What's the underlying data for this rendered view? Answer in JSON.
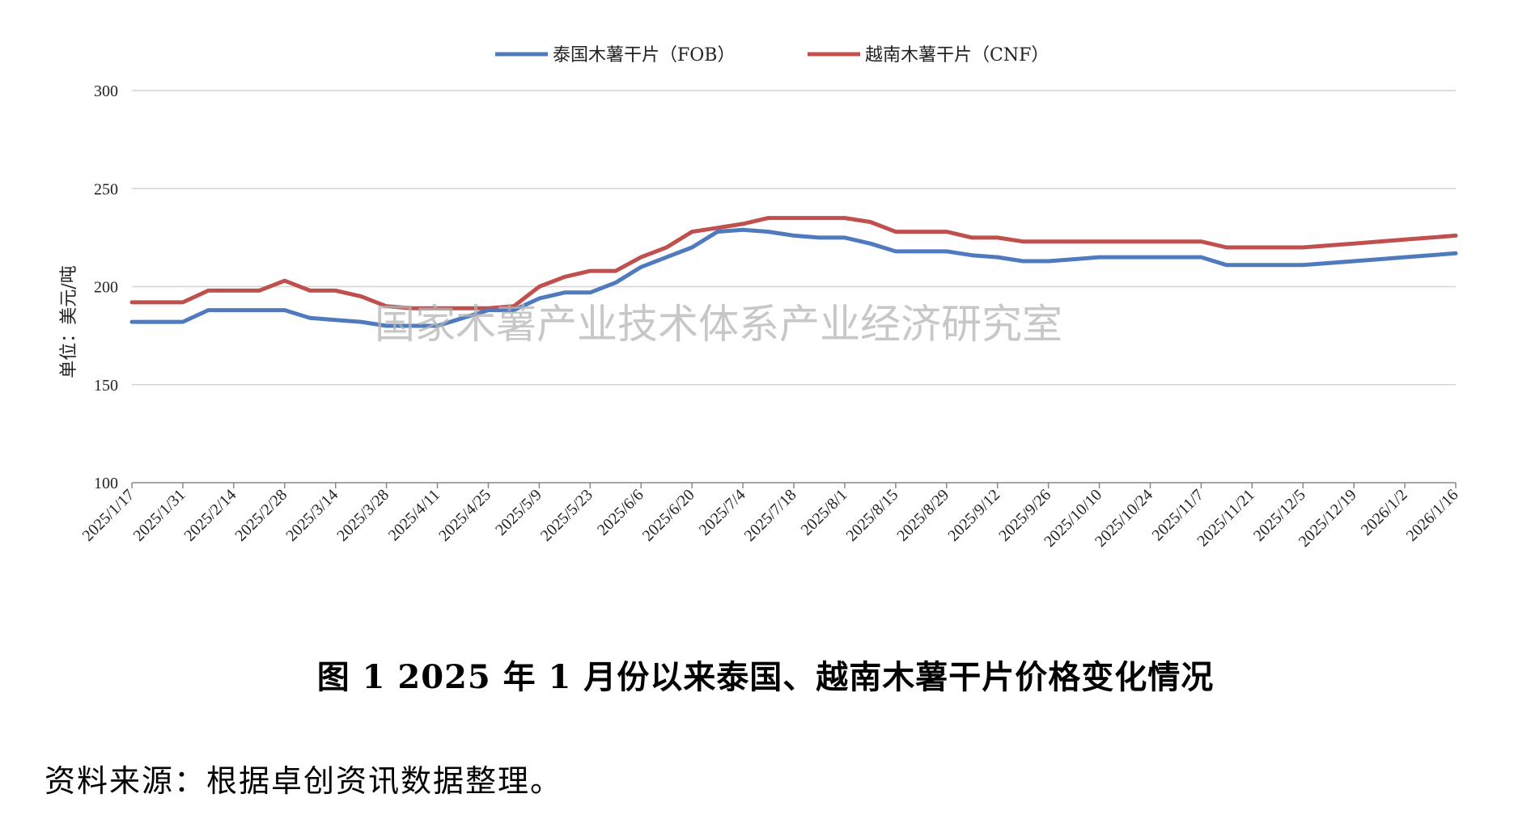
{
  "chart_data": {
    "type": "line",
    "title": "",
    "xlabel": "",
    "ylabel": "单位：美元/吨",
    "ylim": [
      100,
      300
    ],
    "yticks": [
      100,
      150,
      200,
      250,
      300
    ],
    "grid": true,
    "legend_position": "top",
    "x_tick_labels": [
      "2025/1/17",
      "2025/1/31",
      "2025/2/14",
      "2025/2/28",
      "2025/3/14",
      "2025/3/28",
      "2025/4/11",
      "2025/4/25",
      "2025/5/9",
      "2025/5/23",
      "2025/6/6",
      "2025/6/20",
      "2025/7/4",
      "2025/7/18",
      "2025/8/1",
      "2025/8/15",
      "2025/8/29",
      "2025/9/12",
      "2025/9/26",
      "2025/10/10",
      "2025/10/24",
      "2025/11/7",
      "2025/11/21",
      "2025/12/5",
      "2025/12/19",
      "2026/1/2",
      "2026/1/16"
    ],
    "x": [
      "2025/1/17",
      "2025/1/24",
      "2025/1/31",
      "2025/2/7",
      "2025/2/14",
      "2025/2/21",
      "2025/2/28",
      "2025/3/7",
      "2025/3/14",
      "2025/3/21",
      "2025/3/28",
      "2025/4/4",
      "2025/4/11",
      "2025/4/18",
      "2025/4/25",
      "2025/5/2",
      "2025/5/9",
      "2025/5/16",
      "2025/5/23",
      "2025/5/30",
      "2025/6/6",
      "2025/6/13",
      "2025/6/20",
      "2025/6/27",
      "2025/7/4",
      "2025/7/11",
      "2025/7/18",
      "2025/7/25",
      "2025/8/1",
      "2025/8/8",
      "2025/8/15",
      "2025/8/22",
      "2025/8/29",
      "2025/9/5",
      "2025/9/12",
      "2025/9/19",
      "2025/9/26",
      "2025/10/3",
      "2025/10/10",
      "2025/10/17",
      "2025/10/24",
      "2025/10/31",
      "2025/11/7",
      "2025/11/14",
      "2025/11/21",
      "2025/11/28",
      "2025/12/5",
      "2025/12/12",
      "2025/12/19",
      "2025/12/26",
      "2026/1/2",
      "2026/1/9",
      "2026/1/16"
    ],
    "series": [
      {
        "name": "泰国木薯干片（FOB）",
        "color": "#4f7bbe",
        "values": [
          182,
          182,
          182,
          188,
          188,
          188,
          188,
          184,
          183,
          182,
          180,
          180,
          180,
          184,
          188,
          188,
          194,
          197,
          197,
          202,
          210,
          215,
          220,
          228,
          229,
          228,
          226,
          225,
          225,
          222,
          218,
          218,
          218,
          216,
          215,
          213,
          213,
          214,
          215,
          215,
          215,
          215,
          215,
          211,
          211,
          211,
          211,
          212,
          213,
          214,
          215,
          216,
          217
        ]
      },
      {
        "name": "越南木薯干片（CNF）",
        "color": "#c0504d",
        "values": [
          192,
          192,
          192,
          198,
          198,
          198,
          203,
          198,
          198,
          195,
          190,
          189,
          189,
          189,
          189,
          190,
          200,
          205,
          208,
          208,
          215,
          220,
          228,
          230,
          232,
          235,
          235,
          235,
          235,
          233,
          228,
          228,
          228,
          225,
          225,
          223,
          223,
          223,
          223,
          223,
          223,
          223,
          223,
          220,
          220,
          220,
          220,
          221,
          222,
          223,
          224,
          225,
          226
        ]
      }
    ]
  },
  "watermark": "国家木薯产业技术体系产业经济研究室",
  "caption": "图 1   2025 年 1 月份以来泰国、越南木薯干片价格变化情况",
  "source_note": "资料来源：根据卓创资讯数据整理。"
}
